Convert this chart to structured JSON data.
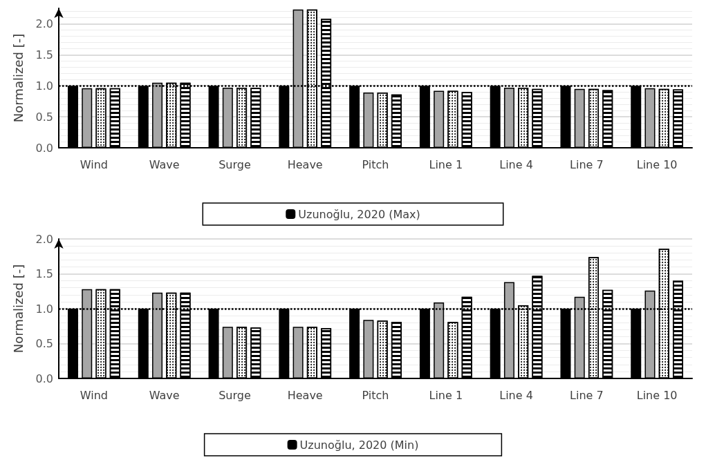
{
  "chart_data": [
    {
      "type": "bar",
      "ylabel": "Normalized [-]",
      "categories": [
        "Wind",
        "Wave",
        "Surge",
        "Heave",
        "Pitch",
        "Line 1",
        "Line 4",
        "Line 7",
        "Line 10"
      ],
      "series": [
        {
          "name": "Uzunoğlu, 2020 (Max)",
          "color": "#000000",
          "values": [
            1.0,
            1.0,
            1.0,
            1.0,
            1.0,
            1.0,
            1.0,
            1.0,
            1.0
          ]
        },
        {
          "color": "#a6a6a6",
          "values": [
            0.96,
            1.05,
            0.97,
            2.23,
            0.89,
            0.92,
            0.97,
            0.95,
            0.96
          ]
        },
        {
          "color": "#ffffff",
          "values": [
            0.96,
            1.05,
            0.97,
            2.23,
            0.89,
            0.92,
            0.97,
            0.95,
            0.95
          ]
        },
        {
          "color": "#ffffff",
          "values": [
            0.96,
            1.05,
            0.97,
            2.08,
            0.86,
            0.9,
            0.95,
            0.93,
            0.94
          ]
        }
      ],
      "ylim": [
        0,
        2.25
      ],
      "yticks": [
        {
          "value": 0,
          "label": "0.0"
        },
        {
          "value": 0.5,
          "label": "0.5"
        },
        {
          "value": 1,
          "label": "1.0"
        },
        {
          "value": 1.5,
          "label": "1.5"
        },
        {
          "value": 2,
          "label": "2.0"
        }
      ],
      "grid": "y",
      "legend": "bottom",
      "ref_lines": [
        {
          "axis": "y",
          "value": 1.0,
          "color": "#000000",
          "line_style": "dotted"
        }
      ]
    },
    {
      "type": "bar",
      "ylabel": "Normalized [-]",
      "categories": [
        "Wind",
        "Wave",
        "Surge",
        "Heave",
        "Pitch",
        "Line 1",
        "Line 4",
        "Line 7",
        "Line 10"
      ],
      "series": [
        {
          "name": "Uzunoğlu, 2020 (Min)",
          "color": "#000000",
          "values": [
            1.0,
            1.0,
            1.0,
            1.0,
            1.0,
            1.0,
            1.0,
            1.0,
            1.0
          ]
        },
        {
          "color": "#a6a6a6",
          "values": [
            1.28,
            1.23,
            0.74,
            0.74,
            0.84,
            1.09,
            1.38,
            1.17,
            1.26
          ]
        },
        {
          "color": "#ffffff",
          "values": [
            1.28,
            1.23,
            0.74,
            0.74,
            0.83,
            0.81,
            1.05,
            1.74,
            1.86
          ]
        },
        {
          "color": "#ffffff",
          "values": [
            1.28,
            1.23,
            0.73,
            0.72,
            0.81,
            1.17,
            1.47,
            1.27,
            1.4
          ]
        }
      ],
      "ylim": [
        0,
        2.0
      ],
      "yticks": [
        {
          "value": 0,
          "label": "0.0"
        },
        {
          "value": 0.5,
          "label": "0.5"
        },
        {
          "value": 1,
          "label": "1.0"
        },
        {
          "value": 1.5,
          "label": "1.5"
        },
        {
          "value": 2,
          "label": "2.0"
        }
      ],
      "grid": "y",
      "legend": "bottom",
      "ref_lines": [
        {
          "axis": "y",
          "value": 1.0,
          "color": "#000000",
          "line_style": "dotted"
        }
      ]
    }
  ]
}
